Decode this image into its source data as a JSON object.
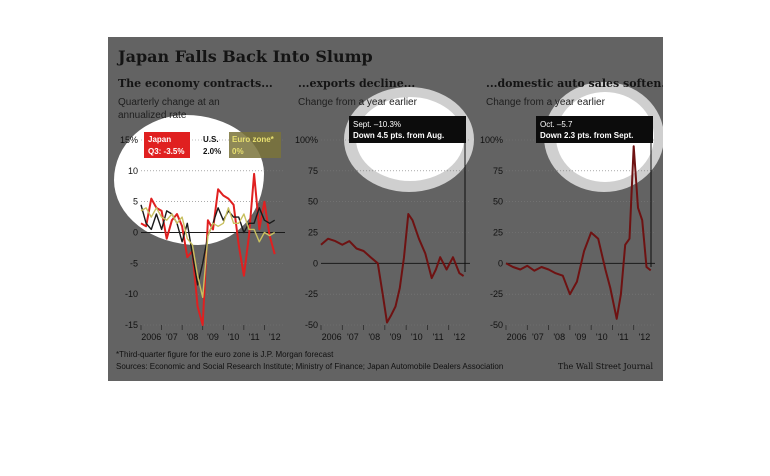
{
  "figure": {
    "title": "Japan Falls Back Into Slump",
    "note": "*Third-quarter figure for the euro zone is J.P. Morgan forecast",
    "sources": "Sources: Economic and Social Research Institute; Ministry of Finance; Japan Automobile Dealers Association",
    "credit": "The Wall Street Journal"
  },
  "colors": {
    "background": "#636363",
    "japan": "#e02020",
    "auto": "#6e1212",
    "us": "#1a1a1a",
    "euro": "#c8c060"
  },
  "panels": [
    {
      "title": "The economy contracts...",
      "subtitle": "Quarterly change at an annualized rate"
    },
    {
      "title": "...exports decline...",
      "subtitle": "Change from a year earlier"
    },
    {
      "title": "...domestic auto sales soften.",
      "subtitle": "Change from a year earlier"
    }
  ],
  "legend": {
    "japan_name": "Japan",
    "japan_value": "Q3: -3.5%",
    "us_name": "U.S.",
    "us_value": "2.0%",
    "euro_name": "Euro zone*",
    "euro_value": "0%"
  },
  "callouts": {
    "exports_line1": "Sept. –10.3%",
    "exports_line2": "Down 4.5 pts. from Aug.",
    "auto_line1": "Oct. –5.7",
    "auto_line2": "Down 2.3 pts. from Sept."
  },
  "chart_data": [
    {
      "type": "line",
      "title": "The economy contracts...",
      "subtitle": "Quarterly change at an annualized rate",
      "x_tick_labels": [
        "2006",
        "'07",
        "'08",
        "'09",
        "'10",
        "'11",
        "'12"
      ],
      "y_tick_labels": [
        "15%",
        "10",
        "5",
        "0",
        "-5",
        "-10",
        "-15"
      ],
      "ylim": [
        -15,
        15
      ],
      "xlim": [
        2006,
        2013
      ],
      "series": [
        {
          "name": "Japan",
          "color": "#e02020",
          "x": [
            2006.0,
            2006.25,
            2006.5,
            2006.75,
            2007.0,
            2007.25,
            2007.5,
            2007.75,
            2008.0,
            2008.25,
            2008.5,
            2008.75,
            2009.0,
            2009.25,
            2009.5,
            2009.75,
            2010.0,
            2010.25,
            2010.5,
            2010.75,
            2011.0,
            2011.25,
            2011.5,
            2011.75,
            2012.0,
            2012.25,
            2012.5
          ],
          "y": [
            1.5,
            1.0,
            5.5,
            4.0,
            3.5,
            -1.0,
            2.0,
            3.0,
            1.0,
            -4.0,
            -3.0,
            -12.0,
            -15.0,
            2.0,
            0.5,
            7.0,
            6.0,
            5.5,
            4.5,
            -2.0,
            -7.0,
            -0.5,
            9.5,
            0.5,
            5.0,
            -0.5,
            -3.5
          ]
        },
        {
          "name": "U.S.",
          "color": "#1a1a1a",
          "x": [
            2006.0,
            2006.25,
            2006.5,
            2006.75,
            2007.0,
            2007.25,
            2007.5,
            2007.75,
            2008.0,
            2008.25,
            2008.5,
            2008.75,
            2009.0,
            2009.25,
            2009.5,
            2009.75,
            2010.0,
            2010.25,
            2010.5,
            2010.75,
            2011.0,
            2011.25,
            2011.5,
            2011.75,
            2012.0,
            2012.25,
            2012.5
          ],
          "y": [
            4.5,
            1.5,
            0.5,
            3.0,
            0.5,
            3.5,
            3.0,
            1.5,
            -1.5,
            1.5,
            -3.5,
            -8.5,
            -5.0,
            -0.5,
            1.5,
            4.0,
            2.0,
            3.5,
            2.5,
            2.5,
            0.0,
            1.5,
            1.5,
            4.0,
            2.0,
            1.5,
            2.0
          ]
        },
        {
          "name": "Euro zone*",
          "color": "#c8c060",
          "x": [
            2006.0,
            2006.25,
            2006.5,
            2006.75,
            2007.0,
            2007.25,
            2007.5,
            2007.75,
            2008.0,
            2008.25,
            2008.5,
            2008.75,
            2009.0,
            2009.25,
            2009.5,
            2009.75,
            2010.0,
            2010.25,
            2010.5,
            2010.75,
            2011.0,
            2011.25,
            2011.5,
            2011.75,
            2012.0,
            2012.25,
            2012.5
          ],
          "y": [
            3.5,
            4.0,
            2.5,
            4.0,
            2.5,
            2.0,
            3.0,
            1.5,
            2.5,
            -1.0,
            -2.0,
            -7.0,
            -10.5,
            -0.5,
            1.5,
            1.0,
            1.5,
            4.0,
            1.5,
            1.5,
            3.0,
            0.5,
            0.5,
            -1.5,
            0.0,
            -0.5,
            0.0
          ]
        }
      ]
    },
    {
      "type": "line",
      "title": "...exports decline...",
      "subtitle": "Change from a year earlier",
      "x_tick_labels": [
        "2006",
        "'07",
        "'08",
        "'09",
        "'10",
        "'11",
        "'12"
      ],
      "y_tick_labels": [
        "100%",
        "75",
        "50",
        "25",
        "0",
        "-25",
        "-50"
      ],
      "ylim": [
        -50,
        100
      ],
      "xlim": [
        2006,
        2013
      ],
      "series": [
        {
          "name": "Exports",
          "color": "#6e1212",
          "x": [
            2006.0,
            2006.33,
            2006.67,
            2007.0,
            2007.33,
            2007.67,
            2008.0,
            2008.33,
            2008.67,
            2008.9,
            2009.1,
            2009.3,
            2009.5,
            2009.7,
            2009.9,
            2010.1,
            2010.3,
            2010.6,
            2010.9,
            2011.2,
            2011.4,
            2011.6,
            2011.9,
            2012.2,
            2012.5,
            2012.7
          ],
          "y": [
            15,
            20,
            18,
            15,
            18,
            12,
            10,
            5,
            0,
            -25,
            -48,
            -42,
            -35,
            -20,
            5,
            40,
            35,
            20,
            8,
            -12,
            -5,
            5,
            -5,
            5,
            -8,
            -10.3
          ]
        }
      ]
    },
    {
      "type": "line",
      "title": "...domestic auto sales soften.",
      "subtitle": "Change from a year earlier",
      "x_tick_labels": [
        "2006",
        "'07",
        "'08",
        "'09",
        "'10",
        "'11",
        "'12"
      ],
      "y_tick_labels": [
        "100%",
        "75",
        "50",
        "25",
        "0",
        "-25",
        "-50"
      ],
      "ylim": [
        -50,
        100
      ],
      "xlim": [
        2006,
        2013
      ],
      "series": [
        {
          "name": "Auto sales",
          "color": "#6e1212",
          "x": [
            2006.0,
            2006.33,
            2006.67,
            2007.0,
            2007.33,
            2007.67,
            2008.0,
            2008.33,
            2008.67,
            2009.0,
            2009.33,
            2009.67,
            2010.0,
            2010.33,
            2010.67,
            2010.9,
            2011.2,
            2011.4,
            2011.6,
            2011.8,
            2012.0,
            2012.2,
            2012.4,
            2012.6,
            2012.8
          ],
          "y": [
            0,
            -3,
            -5,
            -2,
            -6,
            -3,
            -5,
            -8,
            -10,
            -25,
            -15,
            10,
            25,
            20,
            -5,
            -20,
            -45,
            -25,
            15,
            20,
            95,
            45,
            35,
            -3,
            -5.7
          ]
        }
      ]
    }
  ]
}
